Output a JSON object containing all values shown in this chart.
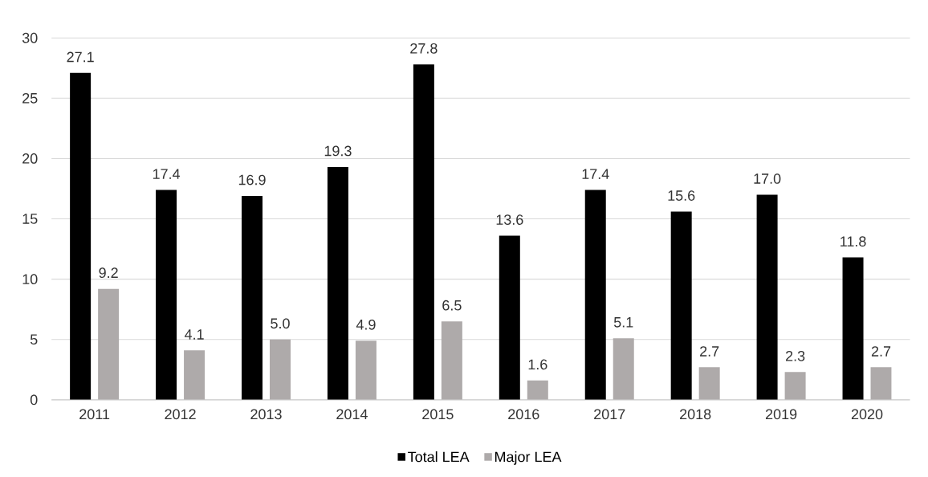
{
  "chart_data": {
    "type": "bar",
    "categories": [
      "2011",
      "2012",
      "2013",
      "2014",
      "2015",
      "2016",
      "2017",
      "2018",
      "2019",
      "2020"
    ],
    "series": [
      {
        "name": "Total LEA",
        "color": "#000000",
        "values": [
          27.1,
          17.4,
          16.9,
          19.3,
          27.8,
          13.6,
          17.4,
          15.6,
          17.0,
          11.8
        ],
        "value_labels": [
          "27.1",
          "17.4",
          "16.9",
          "19.3",
          "27.8",
          "13.6",
          "17.4",
          "15.6",
          "17.0",
          "11.8"
        ]
      },
      {
        "name": "Major LEA",
        "color": "#aeaaaa",
        "values": [
          9.2,
          4.1,
          5.0,
          4.9,
          6.5,
          1.6,
          5.1,
          2.7,
          2.3,
          2.7
        ],
        "value_labels": [
          "9.2",
          "4.1",
          "5.0",
          "4.9",
          "6.5",
          "1.6",
          "5.1",
          "2.7",
          "2.3",
          "2.7"
        ]
      }
    ],
    "ylim": [
      0,
      30
    ],
    "yticks": [
      0,
      5,
      10,
      15,
      20,
      25,
      30
    ],
    "grid": "y",
    "legend": "bottom"
  }
}
